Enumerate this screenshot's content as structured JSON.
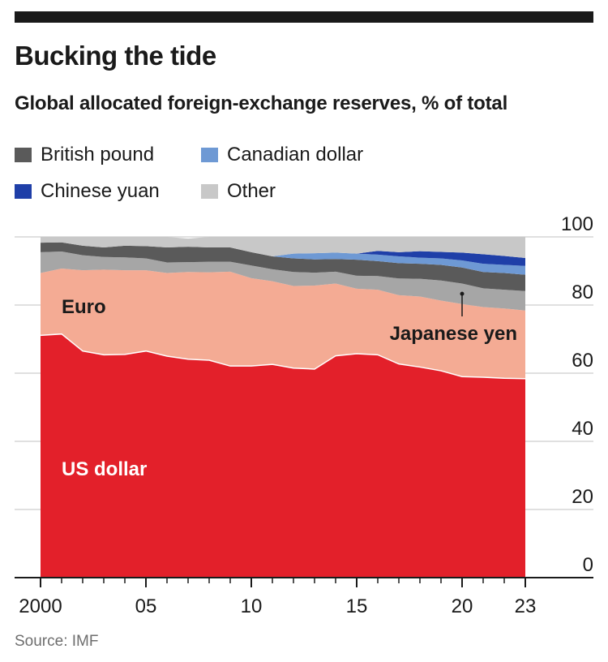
{
  "title": "Bucking the tide",
  "subtitle": "Global allocated foreign-exchange reserves, % of total",
  "source": "Source: IMF",
  "legend": [
    {
      "label": "British pound",
      "color": "#5a5a5a"
    },
    {
      "label": "Canadian dollar",
      "color": "#6e99d4"
    },
    {
      "label": "Chinese yuan",
      "color": "#1f3fa8"
    },
    {
      "label": "Other",
      "color": "#c8c8c8"
    }
  ],
  "chart_data": {
    "type": "area",
    "stacked": true,
    "title": "Bucking the tide",
    "subtitle": "Global allocated foreign-exchange reserves, % of total",
    "x": [
      2000,
      2001,
      2002,
      2003,
      2004,
      2005,
      2006,
      2007,
      2008,
      2009,
      2010,
      2011,
      2012,
      2013,
      2014,
      2015,
      2016,
      2017,
      2018,
      2019,
      2020,
      2021,
      2022,
      2023
    ],
    "xticks": [
      {
        "value": 2000,
        "label": "2000"
      },
      {
        "value": 2005,
        "label": "05"
      },
      {
        "value": 2010,
        "label": "10"
      },
      {
        "value": 2015,
        "label": "15"
      },
      {
        "value": 2020,
        "label": "20"
      },
      {
        "value": 2023,
        "label": "23"
      }
    ],
    "yticks": [
      0,
      20,
      40,
      60,
      80,
      100
    ],
    "ylim": [
      0,
      100
    ],
    "y_axis_side": "right",
    "series": [
      {
        "name": "US dollar",
        "color": "#e3202a",
        "values": [
          71.1,
          71.5,
          66.5,
          65.4,
          65.5,
          66.5,
          65.0,
          64.1,
          63.8,
          62.1,
          62.1,
          62.6,
          61.5,
          61.2,
          65.1,
          65.7,
          65.4,
          62.7,
          61.8,
          60.7,
          59.0,
          58.8,
          58.5,
          58.4
        ]
      },
      {
        "name": "Euro",
        "color": "#f4ab94",
        "values": [
          18.3,
          19.2,
          23.7,
          25.0,
          24.7,
          23.7,
          24.4,
          25.6,
          25.8,
          27.7,
          25.8,
          24.4,
          24.1,
          24.5,
          21.2,
          19.1,
          19.1,
          20.2,
          20.7,
          20.6,
          21.3,
          20.6,
          20.5,
          20.0
        ]
      },
      {
        "name": "Japanese yen",
        "color": "#a6a6a6",
        "values": [
          6.1,
          5.0,
          4.4,
          3.7,
          3.8,
          3.5,
          3.1,
          2.9,
          3.1,
          2.9,
          3.7,
          3.5,
          4.1,
          3.8,
          3.5,
          3.8,
          4.0,
          4.9,
          5.2,
          5.9,
          6.0,
          5.5,
          5.5,
          5.7
        ]
      },
      {
        "name": "British pound",
        "color": "#5a5a5a",
        "values": [
          2.8,
          2.7,
          2.8,
          2.8,
          3.4,
          3.6,
          4.4,
          4.5,
          4.2,
          4.2,
          3.9,
          3.8,
          4.0,
          3.9,
          3.7,
          4.7,
          4.4,
          4.5,
          4.4,
          4.6,
          4.7,
          4.8,
          4.9,
          4.8
        ]
      },
      {
        "name": "Canadian dollar",
        "color": "#6e99d4",
        "values": [
          0,
          0,
          0,
          0,
          0,
          0,
          0,
          0,
          0,
          0,
          0,
          0,
          1.4,
          1.8,
          1.9,
          1.8,
          1.9,
          2.0,
          1.8,
          1.9,
          2.1,
          2.4,
          2.4,
          2.6
        ]
      },
      {
        "name": "Chinese yuan",
        "color": "#1f3fa8",
        "values": [
          0,
          0,
          0,
          0,
          0,
          0,
          0,
          0,
          0,
          0,
          0,
          0,
          0,
          0,
          0,
          0,
          1.1,
          1.2,
          1.9,
          1.9,
          2.3,
          2.8,
          2.6,
          2.3
        ]
      },
      {
        "name": "Other",
        "color": "#c8c8c8",
        "values": [
          1.7,
          1.6,
          2.6,
          3.1,
          2.6,
          2.7,
          3.1,
          2.4,
          3.1,
          3.1,
          4.5,
          5.7,
          4.9,
          4.8,
          4.6,
          4.9,
          4.1,
          4.5,
          4.2,
          4.4,
          4.6,
          5.1,
          5.6,
          6.2
        ]
      }
    ],
    "annotations": [
      {
        "text": "Euro",
        "series": "Euro",
        "color": "#1a1a1a"
      },
      {
        "text": "US dollar",
        "series": "US dollar",
        "color": "#ffffff"
      },
      {
        "text": "Japanese yen",
        "series": "Japanese yen",
        "color": "#1a1a1a",
        "pointer_year": 2020
      }
    ],
    "grid": true
  }
}
